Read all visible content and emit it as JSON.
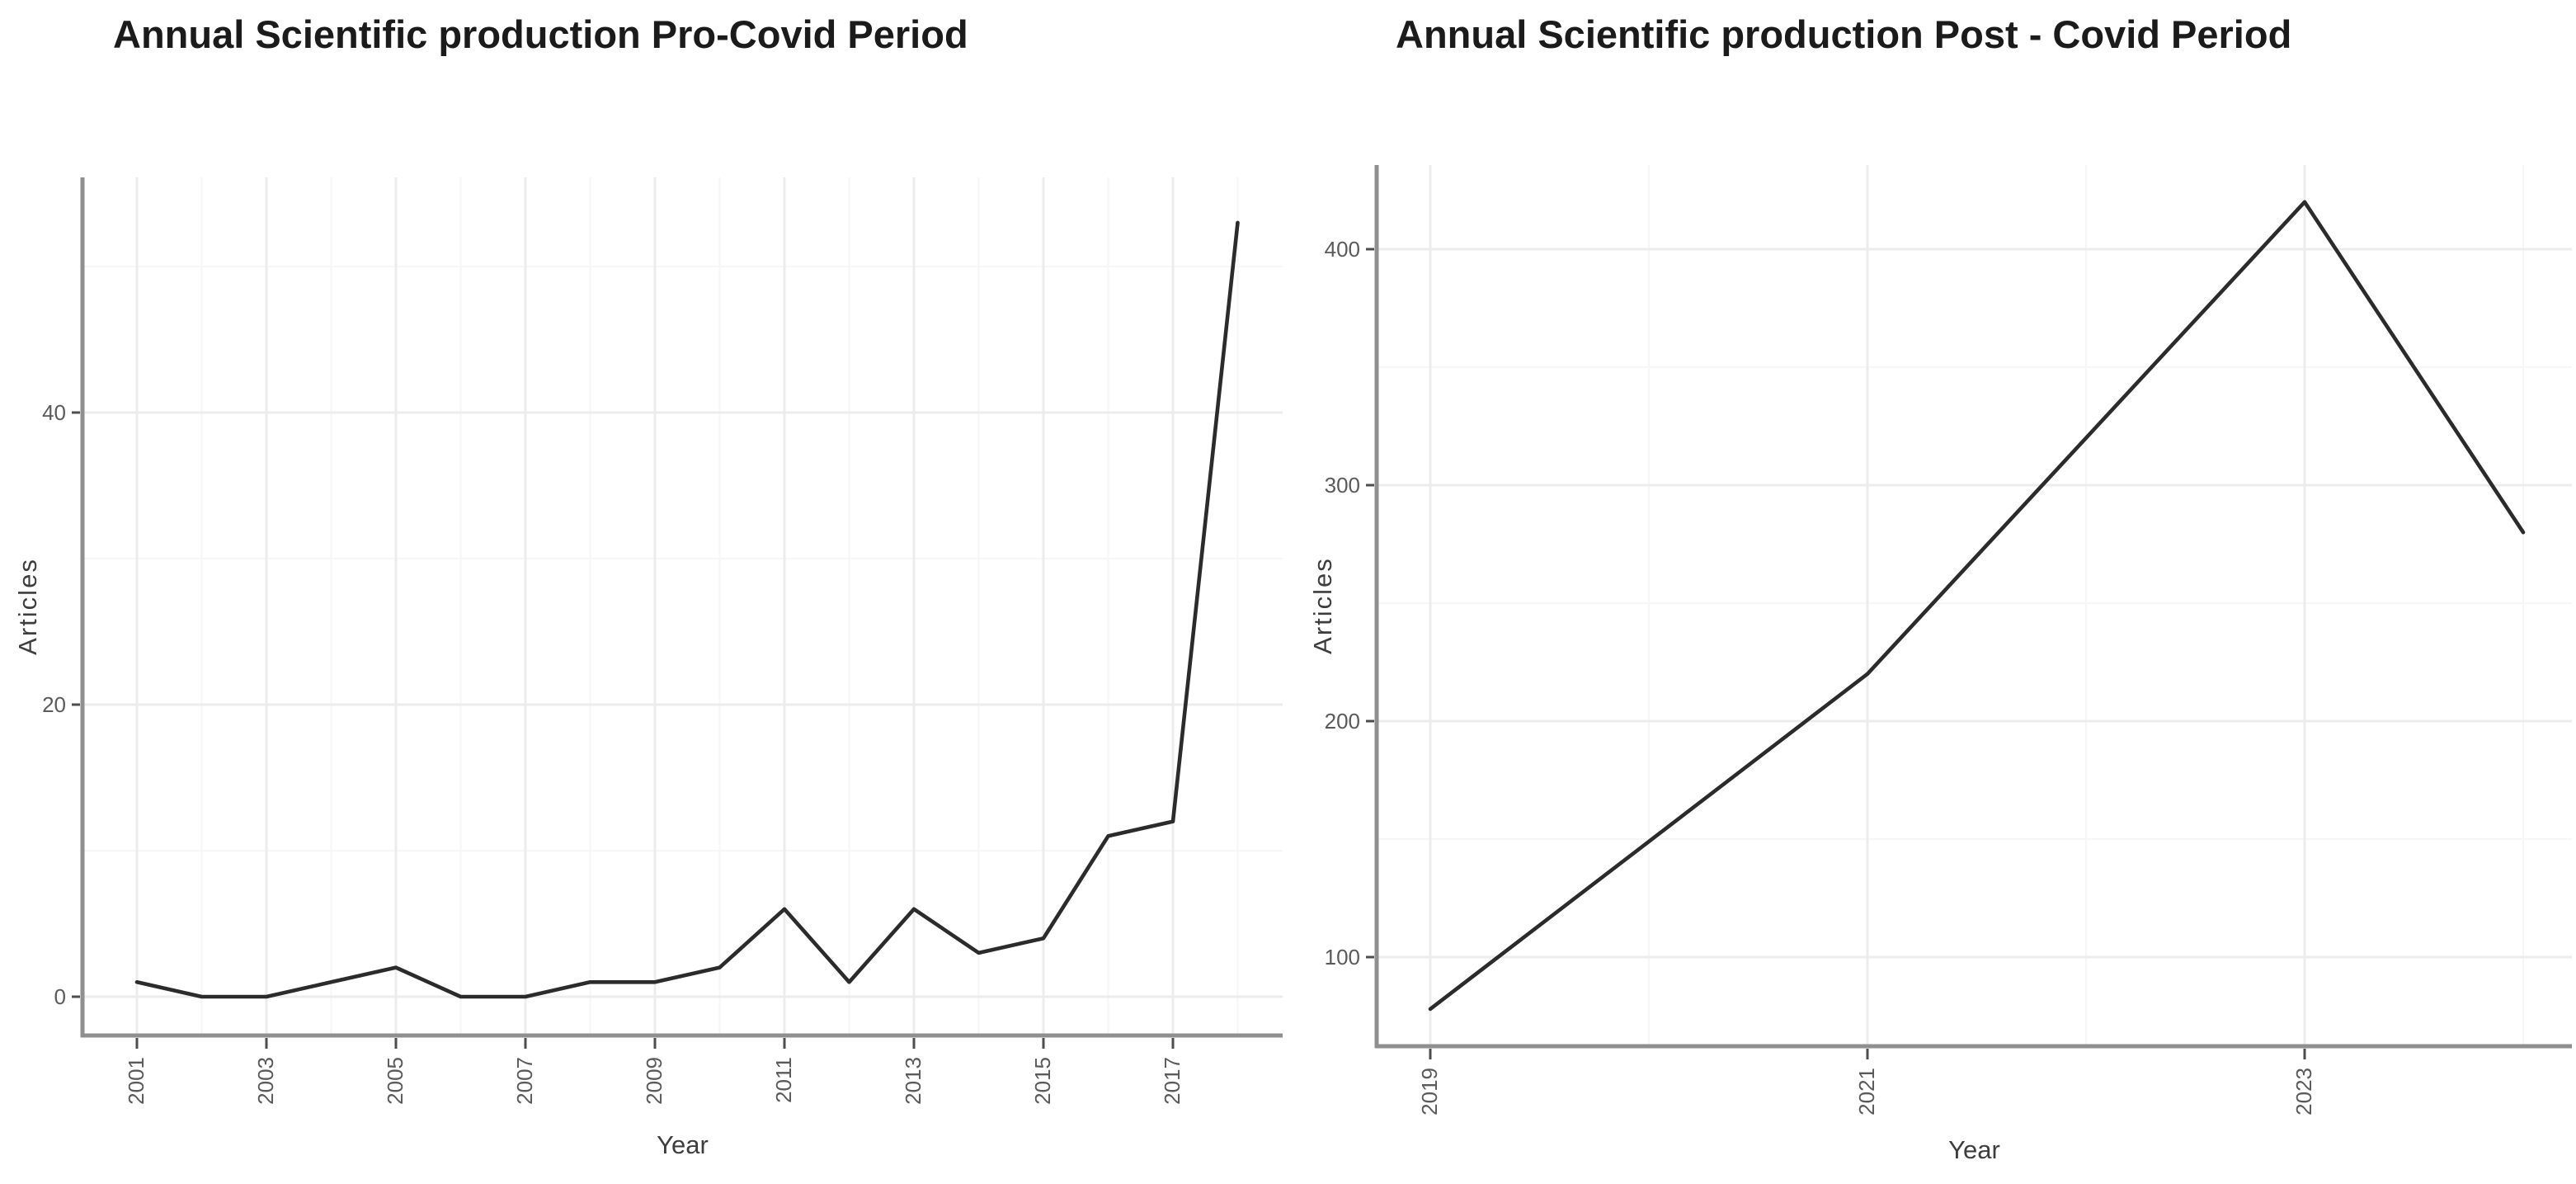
{
  "figure": {
    "background": "#ffffff",
    "description_left_title": "Annual Scientific production Pro-Covid Period",
    "description_right_title": "Annual Scientific production Post - Covid Period"
  },
  "style": {
    "series_line": "#2b2b2b",
    "grid_major": "#ececec",
    "grid_minor": "#f6f6f6",
    "axis_line": "#8f8f8f",
    "tick_mark": "#4d4d4d",
    "tick_label": "#5a5a5a",
    "axis_label": "#3d3d3d",
    "title_color": "#1b1b1b"
  },
  "chart_data": [
    {
      "type": "line",
      "title": "Annual Scientific production Pro-Covid Period",
      "xlabel": "Year",
      "ylabel": "Articles",
      "x": [
        2001,
        2002,
        2003,
        2004,
        2005,
        2006,
        2007,
        2008,
        2009,
        2010,
        2011,
        2012,
        2013,
        2014,
        2015,
        2016,
        2017,
        2018
      ],
      "y": [
        1,
        0,
        0,
        1,
        2,
        0,
        0,
        1,
        1,
        2,
        6,
        1,
        6,
        3,
        4,
        11,
        12,
        53
      ],
      "x_ticks": [
        "2001",
        "2003",
        "2005",
        "2007",
        "2009",
        "2011",
        "2013",
        "2015",
        "2017"
      ],
      "y_ticks": [
        "0",
        "20",
        "40"
      ],
      "xlim": [
        2000.15,
        2018.85
      ],
      "ylim": [
        -2.9,
        56.3
      ],
      "grid": "major and minor, light gray",
      "legend": "none",
      "x_tick_rotation": -90
    },
    {
      "type": "line",
      "title": "Annual Scientific production Post - Covid Period",
      "xlabel": "Year",
      "ylabel": "Articles",
      "x": [
        2019,
        2020,
        2021,
        2022,
        2023,
        2024
      ],
      "y": [
        78,
        149,
        220,
        320,
        420,
        280
      ],
      "x_ticks": [
        "2019",
        "2021",
        "2023"
      ],
      "y_ticks": [
        "100",
        "200",
        "300",
        "400"
      ],
      "xlim": [
        2018.75,
        2024.25
      ],
      "ylim": [
        62,
        437
      ],
      "grid": "major and minor, light gray",
      "legend": "none",
      "x_tick_rotation": -90
    }
  ]
}
